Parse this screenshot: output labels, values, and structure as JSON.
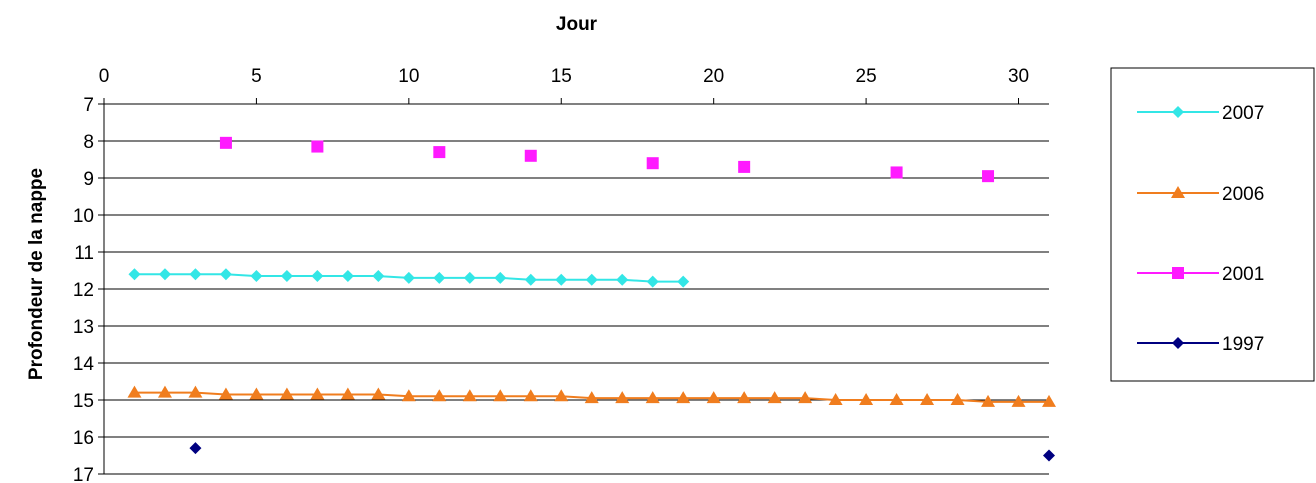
{
  "chart_data": {
    "type": "line",
    "title": "",
    "xlabel": "Jour",
    "ylabel": "Profondeur de la nappe",
    "x_axis_position": "top",
    "y_inverted": true,
    "xlim": [
      0,
      31
    ],
    "ylim": [
      7,
      17
    ],
    "xticks": [
      "0",
      "5",
      "10",
      "15",
      "20",
      "25",
      "30"
    ],
    "yticks": [
      "7",
      "8",
      "9",
      "10",
      "11",
      "12",
      "13",
      "14",
      "15",
      "16",
      "17"
    ],
    "grid": "horizontal",
    "legend_position": "right",
    "series": [
      {
        "name": "2007",
        "color": "#33e6e6",
        "marker": "diamond",
        "line": true,
        "points": [
          [
            1,
            11.6
          ],
          [
            2,
            11.6
          ],
          [
            3,
            11.6
          ],
          [
            4,
            11.6
          ],
          [
            5,
            11.65
          ],
          [
            6,
            11.65
          ],
          [
            7,
            11.65
          ],
          [
            8,
            11.65
          ],
          [
            9,
            11.65
          ],
          [
            10,
            11.7
          ],
          [
            11,
            11.7
          ],
          [
            12,
            11.7
          ],
          [
            13,
            11.7
          ],
          [
            14,
            11.75
          ],
          [
            15,
            11.75
          ],
          [
            16,
            11.75
          ],
          [
            17,
            11.75
          ],
          [
            18,
            11.8
          ],
          [
            19,
            11.8
          ]
        ]
      },
      {
        "name": "2006",
        "color": "#f07d1e",
        "marker": "triangle",
        "line": true,
        "points": [
          [
            1,
            14.8
          ],
          [
            2,
            14.8
          ],
          [
            3,
            14.8
          ],
          [
            4,
            14.85
          ],
          [
            5,
            14.85
          ],
          [
            6,
            14.85
          ],
          [
            7,
            14.85
          ],
          [
            8,
            14.85
          ],
          [
            9,
            14.85
          ],
          [
            10,
            14.9
          ],
          [
            11,
            14.9
          ],
          [
            12,
            14.9
          ],
          [
            13,
            14.9
          ],
          [
            14,
            14.9
          ],
          [
            15,
            14.9
          ],
          [
            16,
            14.95
          ],
          [
            17,
            14.95
          ],
          [
            18,
            14.95
          ],
          [
            19,
            14.95
          ],
          [
            20,
            14.95
          ],
          [
            21,
            14.95
          ],
          [
            22,
            14.95
          ],
          [
            23,
            14.95
          ],
          [
            24,
            15.0
          ],
          [
            25,
            15.0
          ],
          [
            26,
            15.0
          ],
          [
            27,
            15.0
          ],
          [
            28,
            15.0
          ],
          [
            29,
            15.05
          ],
          [
            30,
            15.05
          ],
          [
            31,
            15.05
          ]
        ]
      },
      {
        "name": "2001",
        "color": "#ff1aff",
        "marker": "square",
        "line": false,
        "points": [
          [
            4,
            8.05
          ],
          [
            7,
            8.15
          ],
          [
            11,
            8.3
          ],
          [
            14,
            8.4
          ],
          [
            18,
            8.6
          ],
          [
            21,
            8.7
          ],
          [
            26,
            8.85
          ],
          [
            29,
            8.95
          ]
        ]
      },
      {
        "name": "1997",
        "color": "#000080",
        "marker": "diamond",
        "line": false,
        "points": [
          [
            3,
            16.3
          ],
          [
            31,
            16.5
          ]
        ]
      }
    ]
  }
}
